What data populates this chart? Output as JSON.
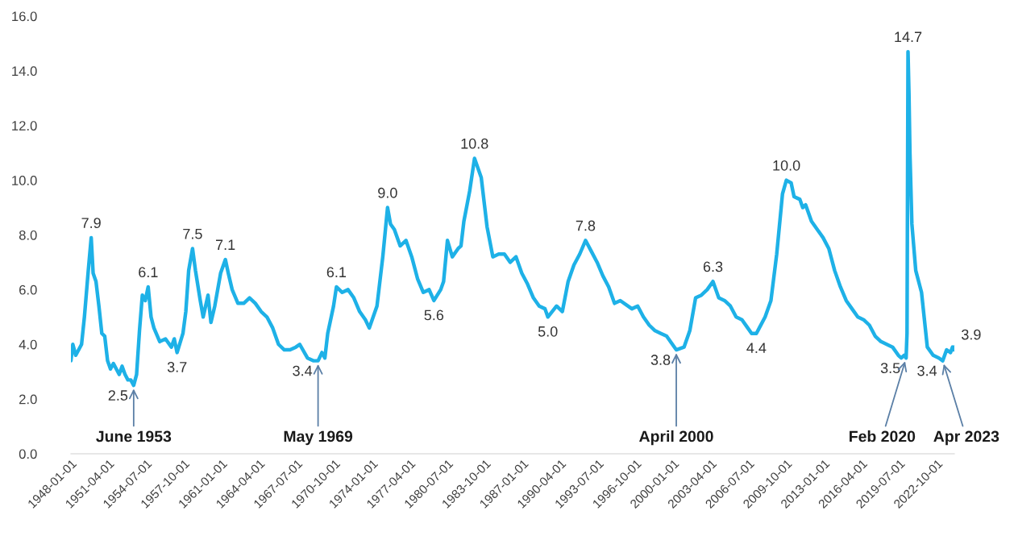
{
  "chart_data": {
    "type": "line",
    "x": [
      "1948-01",
      "1948-03",
      "1948-06",
      "1948-12",
      "1949-03",
      "1949-07",
      "1949-10",
      "1949-12",
      "1950-03",
      "1950-06",
      "1950-09",
      "1950-12",
      "1951-03",
      "1951-06",
      "1951-09",
      "1951-12",
      "1952-03",
      "1952-06",
      "1952-09",
      "1952-12",
      "1953-03",
      "1953-06",
      "1953-09",
      "1953-12",
      "1954-03",
      "1954-06",
      "1954-09",
      "1954-12",
      "1955-03",
      "1955-09",
      "1956-03",
      "1956-09",
      "1956-12",
      "1957-03",
      "1957-09",
      "1957-12",
      "1958-03",
      "1958-07",
      "1958-10",
      "1959-03",
      "1959-06",
      "1959-11",
      "1960-02",
      "1960-06",
      "1960-12",
      "1961-05",
      "1961-08",
      "1961-12",
      "1962-06",
      "1962-12",
      "1963-06",
      "1963-12",
      "1964-06",
      "1964-12",
      "1965-06",
      "1965-12",
      "1966-06",
      "1966-12",
      "1967-06",
      "1967-10",
      "1968-06",
      "1968-12",
      "1969-05",
      "1969-09",
      "1969-12",
      "1970-03",
      "1970-09",
      "1970-12",
      "1971-06",
      "1971-12",
      "1972-06",
      "1972-12",
      "1973-06",
      "1973-10",
      "1974-06",
      "1974-12",
      "1975-05",
      "1975-08",
      "1975-12",
      "1976-06",
      "1976-12",
      "1977-06",
      "1977-12",
      "1978-06",
      "1978-12",
      "1979-05",
      "1979-12",
      "1980-03",
      "1980-07",
      "1980-12",
      "1981-06",
      "1981-09",
      "1981-12",
      "1982-06",
      "1982-11",
      "1983-06",
      "1983-12",
      "1984-06",
      "1984-12",
      "1985-06",
      "1985-12",
      "1986-06",
      "1986-12",
      "1987-06",
      "1987-12",
      "1988-06",
      "1988-12",
      "1989-03",
      "1989-12",
      "1990-06",
      "1990-12",
      "1991-06",
      "1991-12",
      "1992-06",
      "1992-12",
      "1993-06",
      "1993-12",
      "1994-06",
      "1994-12",
      "1995-06",
      "1996-06",
      "1996-12",
      "1997-06",
      "1997-12",
      "1998-06",
      "1998-12",
      "1999-06",
      "1999-12",
      "2000-04",
      "2000-12",
      "2001-06",
      "2001-12",
      "2002-06",
      "2002-12",
      "2003-06",
      "2003-12",
      "2004-06",
      "2004-12",
      "2005-06",
      "2005-12",
      "2006-06",
      "2006-10",
      "2007-03",
      "2007-06",
      "2007-12",
      "2008-06",
      "2008-12",
      "2009-06",
      "2009-10",
      "2010-03",
      "2010-06",
      "2010-12",
      "2011-03",
      "2011-06",
      "2011-12",
      "2012-06",
      "2012-12",
      "2013-06",
      "2013-12",
      "2014-06",
      "2014-12",
      "2015-06",
      "2015-12",
      "2016-06",
      "2016-12",
      "2017-06",
      "2017-12",
      "2018-06",
      "2018-12",
      "2019-06",
      "2019-09",
      "2019-12",
      "2020-02",
      "2020-03",
      "2020-04",
      "2020-05",
      "2020-06",
      "2020-08",
      "2020-12",
      "2021-06",
      "2021-12",
      "2022-06",
      "2022-12",
      "2023-04",
      "2023-08",
      "2023-12",
      "2024-02",
      "2024-03",
      "2024-04"
    ],
    "series": [
      {
        "color": "#1eb1e7",
        "values": [
          3.4,
          4.0,
          3.6,
          4.0,
          5.0,
          6.7,
          7.9,
          6.6,
          6.3,
          5.4,
          4.4,
          4.3,
          3.4,
          3.1,
          3.3,
          3.1,
          2.9,
          3.2,
          2.9,
          2.7,
          2.7,
          2.5,
          2.9,
          4.5,
          5.8,
          5.6,
          6.1,
          5.0,
          4.6,
          4.1,
          4.2,
          3.9,
          4.2,
          3.7,
          4.4,
          5.2,
          6.7,
          7.5,
          6.7,
          5.6,
          5.0,
          5.8,
          4.8,
          5.4,
          6.6,
          7.1,
          6.6,
          6.0,
          5.5,
          5.5,
          5.7,
          5.5,
          5.2,
          5.0,
          4.6,
          4.0,
          3.8,
          3.8,
          3.9,
          4.0,
          3.5,
          3.4,
          3.4,
          3.7,
          3.5,
          4.4,
          5.4,
          6.1,
          5.9,
          6.0,
          5.7,
          5.2,
          4.9,
          4.6,
          5.4,
          7.2,
          9.0,
          8.4,
          8.2,
          7.6,
          7.8,
          7.2,
          6.4,
          5.9,
          6.0,
          5.6,
          6.0,
          6.3,
          7.8,
          7.2,
          7.5,
          7.6,
          8.5,
          9.6,
          10.8,
          10.1,
          8.3,
          7.2,
          7.3,
          7.3,
          7.0,
          7.2,
          6.6,
          6.2,
          5.7,
          5.4,
          5.3,
          5.0,
          5.4,
          5.2,
          6.3,
          6.9,
          7.3,
          7.8,
          7.4,
          7.0,
          6.5,
          6.1,
          5.5,
          5.6,
          5.3,
          5.4,
          5.0,
          4.7,
          4.5,
          4.4,
          4.3,
          4.0,
          3.8,
          3.9,
          4.5,
          5.7,
          5.8,
          6.0,
          6.3,
          5.7,
          5.6,
          5.4,
          5.0,
          4.9,
          4.6,
          4.4,
          4.4,
          4.6,
          5.0,
          5.6,
          7.3,
          9.5,
          10.0,
          9.9,
          9.4,
          9.3,
          9.0,
          9.1,
          8.5,
          8.2,
          7.9,
          7.5,
          6.7,
          6.1,
          5.6,
          5.3,
          5.0,
          4.9,
          4.7,
          4.3,
          4.1,
          4.0,
          3.9,
          3.6,
          3.5,
          3.6,
          3.5,
          4.4,
          14.7,
          13.2,
          11.0,
          8.4,
          6.7,
          5.9,
          3.9,
          3.6,
          3.5,
          3.4,
          3.8,
          3.7,
          3.9,
          3.8,
          3.9
        ],
        "value_labels": [
          null,
          null,
          null,
          null,
          null,
          null,
          "7.9",
          null,
          null,
          null,
          null,
          null,
          null,
          null,
          null,
          null,
          null,
          null,
          null,
          null,
          null,
          "2.5",
          null,
          null,
          null,
          null,
          "6.1",
          null,
          null,
          null,
          null,
          null,
          null,
          "3.7",
          null,
          null,
          null,
          "7.5",
          null,
          null,
          null,
          null,
          null,
          null,
          null,
          "7.1",
          null,
          null,
          null,
          null,
          null,
          null,
          null,
          null,
          null,
          null,
          null,
          null,
          null,
          null,
          null,
          null,
          "3.4",
          null,
          null,
          null,
          null,
          "6.1",
          null,
          null,
          null,
          null,
          null,
          null,
          null,
          null,
          "9.0",
          null,
          null,
          null,
          null,
          null,
          null,
          null,
          null,
          "5.6",
          null,
          null,
          null,
          null,
          null,
          null,
          null,
          null,
          "10.8",
          null,
          null,
          null,
          null,
          null,
          null,
          null,
          null,
          null,
          null,
          null,
          null,
          "5.0",
          null,
          null,
          null,
          null,
          null,
          "7.8",
          null,
          null,
          null,
          null,
          null,
          null,
          null,
          null,
          null,
          null,
          null,
          null,
          null,
          null,
          "3.8",
          null,
          null,
          null,
          null,
          null,
          "6.3",
          null,
          null,
          null,
          null,
          null,
          null,
          null,
          "4.4",
          null,
          null,
          null,
          null,
          null,
          "10.0",
          null,
          null,
          null,
          null,
          null,
          null,
          null,
          null,
          null,
          null,
          null,
          null,
          null,
          null,
          null,
          null,
          null,
          null,
          null,
          null,
          null,
          null,
          null,
          "3.5",
          null,
          "14.7",
          null,
          null,
          null,
          null,
          null,
          null,
          null,
          null,
          "3.4",
          null,
          null,
          null,
          null,
          "3.9"
        ]
      }
    ],
    "xlim": [
      "1948-01-01",
      "2024-04-01"
    ],
    "xticks": [
      "1948-01-01",
      "1951-04-01",
      "1954-07-01",
      "1957-10-01",
      "1961-01-01",
      "1964-04-01",
      "1967-07-01",
      "1970-10-01",
      "1974-01-01",
      "1977-04-01",
      "1980-07-01",
      "1983-10-01",
      "1987-01-01",
      "1990-04-01",
      "1993-07-01",
      "1996-10-01",
      "2000-01-01",
      "2003-04-01",
      "2006-07-01",
      "2009-10-01",
      "2013-01-01",
      "2016-04-01",
      "2019-07-01",
      "2022-10-01"
    ],
    "ylim": [
      0,
      16
    ],
    "yticks": [
      {
        "value": 0,
        "label": "0.0"
      },
      {
        "value": 2,
        "label": "2.0"
      },
      {
        "value": 4,
        "label": "4.0"
      },
      {
        "value": 6,
        "label": "6.0"
      },
      {
        "value": 8,
        "label": "8.0"
      },
      {
        "value": 10,
        "label": "10.0"
      },
      {
        "value": 12,
        "label": "12.0"
      },
      {
        "value": 14,
        "label": "14.0"
      },
      {
        "value": 16,
        "label": "16.0"
      }
    ],
    "annotations": [
      {
        "text": "June 1953",
        "x": "1953-06",
        "y": 2.5
      },
      {
        "text": "May 1969",
        "x": "1969-05",
        "y": 3.4
      },
      {
        "text": "April 2000",
        "x": "2000-04",
        "y": 3.8
      },
      {
        "text": "Feb 2020",
        "x": "2020-02",
        "y": 3.5
      },
      {
        "text": "Apr 2023",
        "x": "2023-04",
        "y": 3.4
      }
    ],
    "marker": "none",
    "line_style": "solid"
  }
}
